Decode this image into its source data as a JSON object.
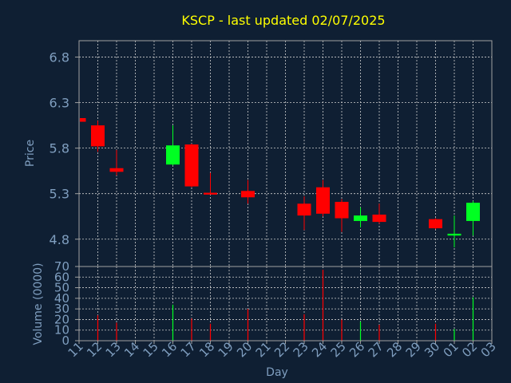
{
  "chart_data": {
    "type": "candlestick",
    "title": "KSCP - last updated 02/07/2025",
    "price_panel": {
      "ylabel": "Price",
      "ylim": [
        4.5,
        6.98
      ],
      "yticks": [
        "4.8",
        "5.3",
        "5.8",
        "6.3",
        "6.8"
      ],
      "ytick_values": [
        4.8,
        5.3,
        5.8,
        6.3,
        6.8
      ]
    },
    "volume_panel": {
      "ylabel": "Volume (0000)",
      "ylim": [
        0,
        70
      ],
      "yticks": [
        "0",
        "10",
        "20",
        "30",
        "40",
        "50",
        "60",
        "70"
      ],
      "ytick_values": [
        0,
        10,
        20,
        30,
        40,
        50,
        60,
        70
      ]
    },
    "xlabel": "Day",
    "x_ticks": [
      "11",
      "12",
      "13",
      "14",
      "15",
      "16",
      "17",
      "18",
      "19",
      "20",
      "21",
      "22",
      "23",
      "24",
      "25",
      "26",
      "27",
      "28",
      "29",
      "30",
      "01",
      "02",
      "03"
    ],
    "candles": [
      {
        "day": "11",
        "open": 6.13,
        "close": 6.09,
        "high": 6.13,
        "low": 6.08
      },
      {
        "day": "12",
        "open": 6.05,
        "close": 5.82,
        "high": 6.1,
        "low": 5.76
      },
      {
        "day": "13",
        "open": 5.58,
        "close": 5.54,
        "high": 5.78,
        "low": 5.5
      },
      {
        "day": "16",
        "open": 5.62,
        "close": 5.83,
        "high": 6.05,
        "low": 5.61
      },
      {
        "day": "17",
        "open": 5.84,
        "close": 5.38,
        "high": 5.85,
        "low": 5.37
      },
      {
        "day": "18",
        "open": 5.31,
        "close": 5.29,
        "high": 5.53,
        "low": 5.29
      },
      {
        "day": "20",
        "open": 5.33,
        "close": 5.26,
        "high": 5.45,
        "low": 5.19
      },
      {
        "day": "23",
        "open": 5.19,
        "close": 5.06,
        "high": 5.27,
        "low": 4.9
      },
      {
        "day": "24",
        "open": 5.37,
        "close": 5.08,
        "high": 5.45,
        "low": 5.05
      },
      {
        "day": "25",
        "open": 5.21,
        "close": 5.03,
        "high": 5.24,
        "low": 4.88
      },
      {
        "day": "26",
        "open": 5.0,
        "close": 5.06,
        "high": 5.15,
        "low": 4.93
      },
      {
        "day": "27",
        "open": 5.07,
        "close": 4.99,
        "high": 5.19,
        "low": 4.97
      },
      {
        "day": "30",
        "open": 5.02,
        "close": 4.92,
        "high": 5.03,
        "low": 4.91
      },
      {
        "day": "01",
        "open": 4.84,
        "close": 4.86,
        "high": 5.06,
        "low": 4.71
      },
      {
        "day": "02",
        "open": 5.0,
        "close": 5.2,
        "high": 5.22,
        "low": 4.84
      }
    ],
    "volume": [
      {
        "day": "12",
        "value": 24,
        "color": "red"
      },
      {
        "day": "13",
        "value": 17,
        "color": "red"
      },
      {
        "day": "16",
        "value": 34,
        "color": "green"
      },
      {
        "day": "17",
        "value": 21,
        "color": "red"
      },
      {
        "day": "18",
        "value": 16,
        "color": "red"
      },
      {
        "day": "20",
        "value": 30,
        "color": "red"
      },
      {
        "day": "23",
        "value": 25,
        "color": "red"
      },
      {
        "day": "24",
        "value": 67,
        "color": "red"
      },
      {
        "day": "25",
        "value": 20,
        "color": "red"
      },
      {
        "day": "26",
        "value": 18,
        "color": "green"
      },
      {
        "day": "27",
        "value": 15,
        "color": "red"
      },
      {
        "day": "30",
        "value": 16,
        "color": "red"
      },
      {
        "day": "01",
        "value": 11,
        "color": "green"
      },
      {
        "day": "02",
        "value": 41,
        "color": "green"
      }
    ],
    "colors": {
      "background": "#0f1f33",
      "title": "#ffff00",
      "axis_text": "#7f9ebf",
      "grid": "#cfcfcf",
      "up": "#00ff22",
      "down": "#ff0000",
      "frame": "#a0a0a0"
    },
    "grid": true
  }
}
